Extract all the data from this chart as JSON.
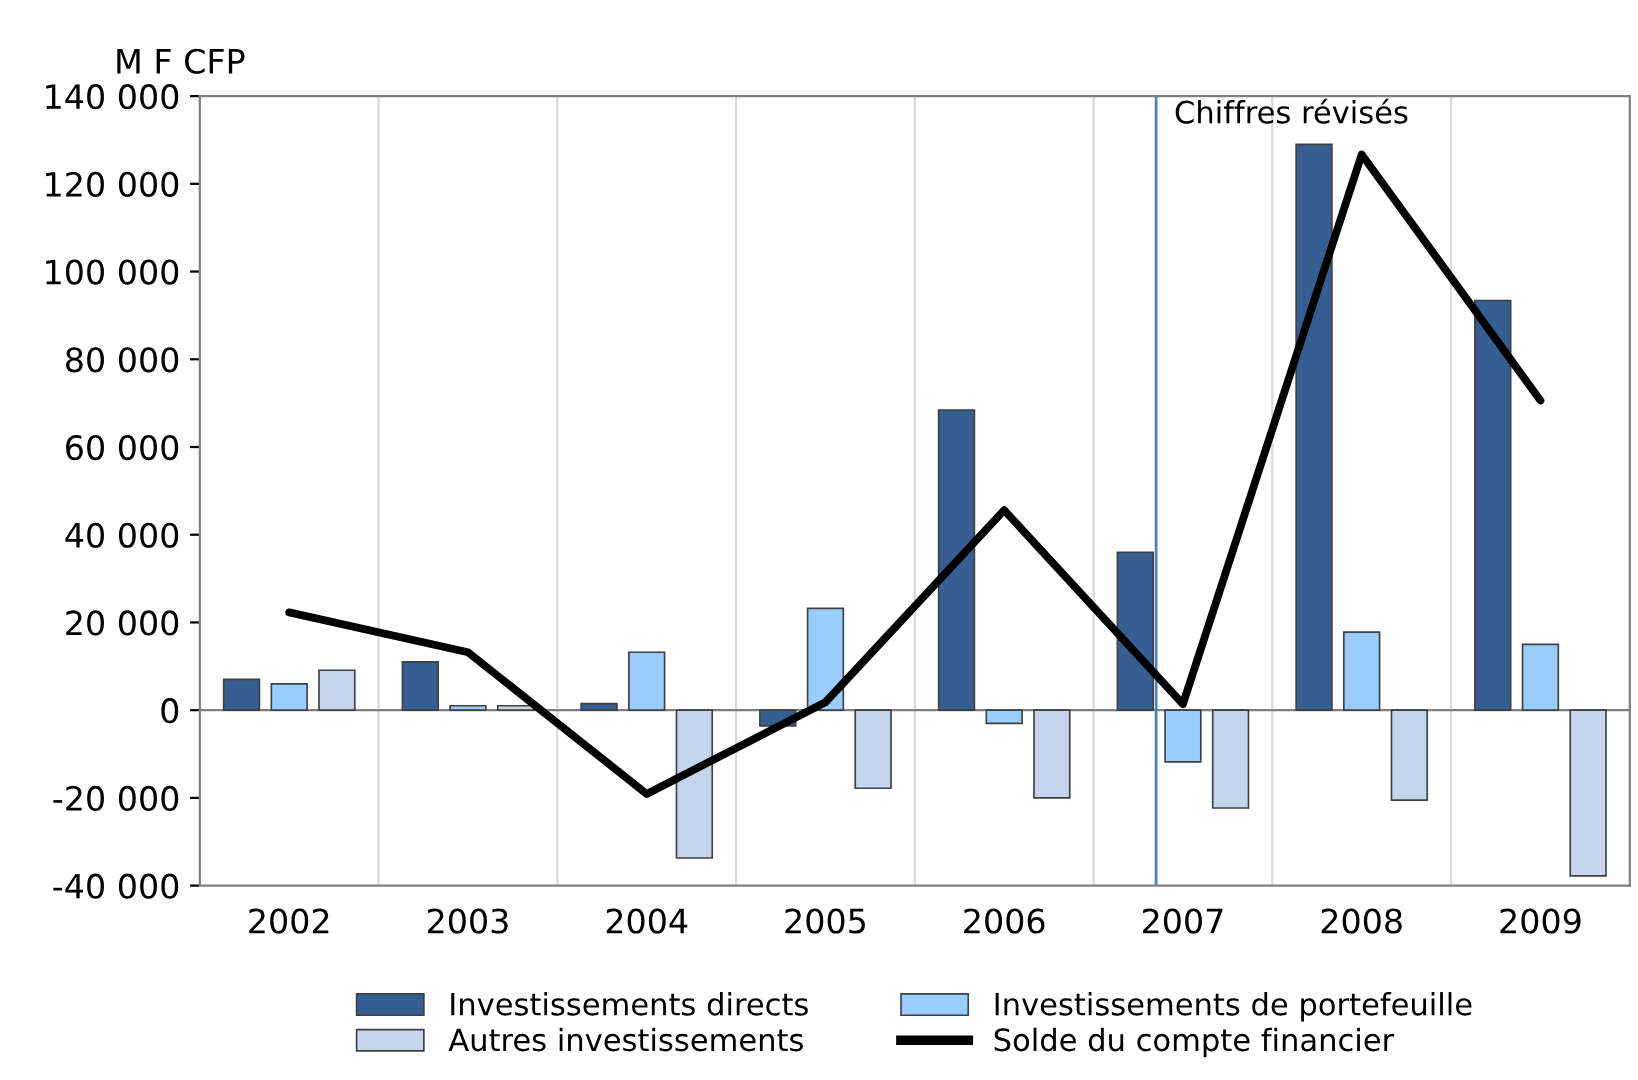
{
  "chart_data": {
    "type": "bar",
    "ylabel": "M F CFP",
    "x": [
      2002,
      2003,
      2004,
      2005,
      2006,
      2007,
      2008,
      2009
    ],
    "xlim": [
      2001.5,
      2009.5
    ],
    "xticks": [
      2002,
      {
        "value": 2002.5,
        "label": null
      },
      2003,
      {
        "value": 2003.5,
        "label": null
      },
      2004,
      {
        "value": 2004.5,
        "label": null
      },
      2005,
      {
        "value": 2005.5,
        "label": null
      },
      2006,
      {
        "value": 2006.5,
        "label": null
      },
      2007,
      {
        "value": 2007.5,
        "label": null
      },
      2008,
      {
        "value": 2008.5,
        "label": null
      },
      2009
    ],
    "series": [
      {
        "name": "Investissements directs",
        "color": "#365f91",
        "values": [
          7000,
          11000,
          1500,
          -3600,
          68400,
          36000,
          129000,
          93400
        ]
      },
      {
        "name": "Investissements de portefeuille",
        "color": "#99ccff",
        "values": [
          6000,
          1000,
          13200,
          23200,
          -3000,
          -11800,
          17800,
          15000
        ]
      },
      {
        "name": "Autres investissements",
        "color": "#c6d5ee",
        "values": [
          9100,
          1000,
          -33700,
          -17800,
          -20000,
          -22300,
          -20500,
          -37800
        ]
      },
      {
        "name": "Solde du compte financier",
        "type": "line",
        "color": "#000000",
        "values": [
          22300,
          13200,
          -19100,
          1800,
          45600,
          1400,
          126700,
          70600
        ]
      }
    ],
    "ylim": [
      -40000,
      140000
    ],
    "yticks": [
      {
        "value": -40000,
        "label": "-40 000"
      },
      {
        "value": -20000,
        "label": "-20 000"
      },
      0,
      {
        "value": 20000,
        "label": "20 000"
      },
      {
        "value": 40000,
        "label": "40 000"
      },
      {
        "value": 60000,
        "label": "60 000"
      },
      {
        "value": 80000,
        "label": "80 000"
      },
      {
        "value": 100000,
        "label": "100 000"
      },
      {
        "value": 120000,
        "label": "120 000"
      },
      {
        "value": 140000,
        "label": "140 000"
      }
    ],
    "ref_lines": [
      {
        "axis": "x",
        "value": 2006.85,
        "label": "Chiffres révisés",
        "color": "#4f81bd"
      }
    ],
    "grid": "x",
    "legend": "bottom",
    "marker": "none",
    "line_style": "solid"
  }
}
